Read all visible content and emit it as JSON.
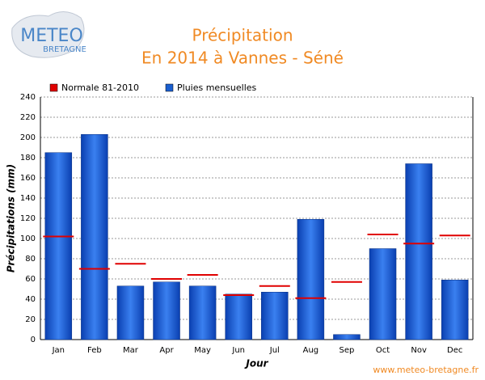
{
  "chart_data": {
    "type": "bar",
    "logo": [
      "METEO",
      "BRETAGNE"
    ],
    "title": [
      "Précipitation",
      "En 2014 à Vannes - Séné"
    ],
    "x_label": "Jour",
    "y_label": "Précipitations (mm)",
    "source": "www.meteo-bretagne.fr",
    "categories": [
      "Jan",
      "Feb",
      "Mar",
      "Apr",
      "May",
      "Jun",
      "Jul",
      "Aug",
      "Sep",
      "Oct",
      "Nov",
      "Dec"
    ],
    "series": [
      {
        "name": "Normale 81-2010",
        "color": "#e00000",
        "mark": "dash",
        "values": [
          102,
          70,
          75,
          60,
          64,
          44,
          53,
          41,
          57,
          104,
          95,
          103
        ]
      },
      {
        "name": "Pluies mensuelles",
        "color": "#1a5fd0",
        "mark": "bar",
        "values": [
          185,
          203,
          53,
          57,
          53,
          45,
          47,
          119,
          5,
          90,
          174,
          59
        ]
      }
    ],
    "ylim": [
      0,
      240
    ],
    "yticks": [
      0,
      20,
      40,
      60,
      80,
      100,
      120,
      140,
      160,
      180,
      200,
      220,
      240
    ],
    "grid": true
  }
}
